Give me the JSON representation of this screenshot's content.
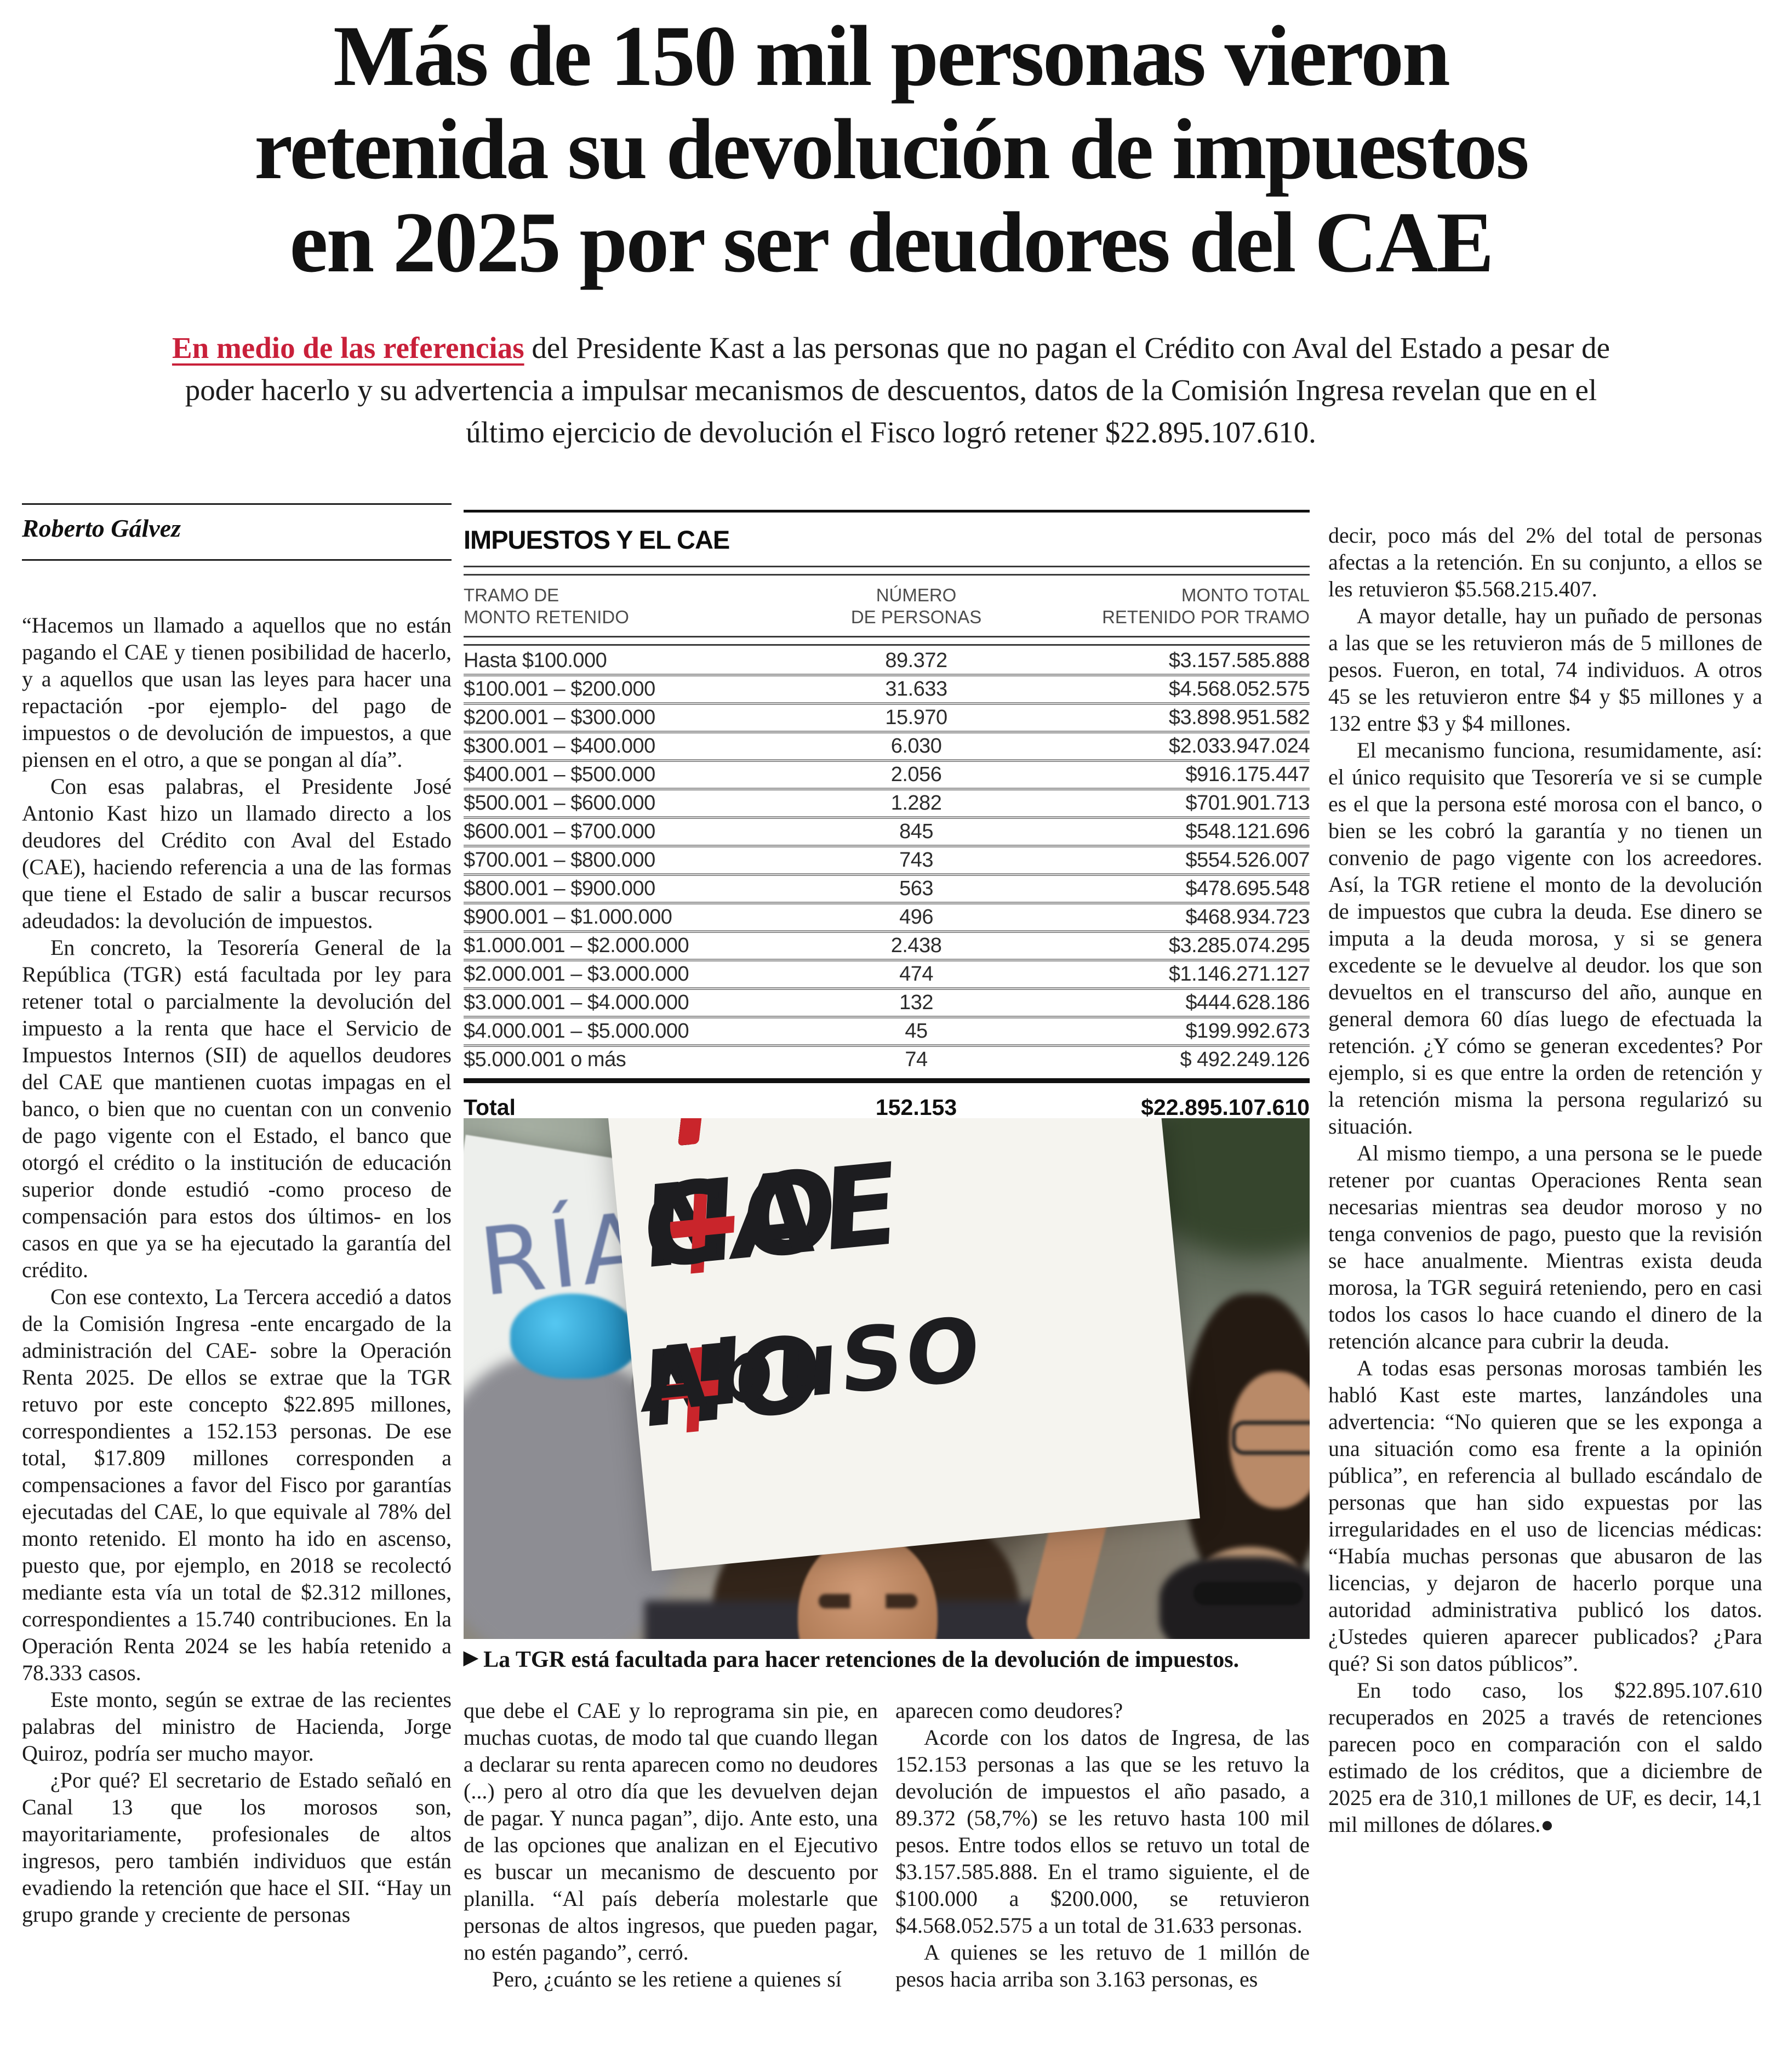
{
  "colors": {
    "accent_red": "#c9203a",
    "sign_plus_red": "#c9252b",
    "cap_blue": "#2aa9dc",
    "side_sign_ink": "#6f7fa8"
  },
  "headline": {
    "lines": [
      "Más de 150 mil personas vieron",
      "retenida su devolución de impuestos",
      "en 2025 por ser deudores del CAE"
    ]
  },
  "standfirst": {
    "lead": "En medio de las referencias",
    "rest": " del Presidente Kast a las personas que no pagan el Crédito con Aval del Estado a pesar de poder hacerlo y su advertencia a impulsar mecanismos de descuentos, datos de la Comisión Ingresa revelan que en el último ejercicio de devolución el Fisco logró retener $22.895.107.610."
  },
  "byline": "Roberto Gálvez",
  "infographic": {
    "title": "IMPUESTOS Y EL CAE",
    "headers": [
      "TRAMO DE\nMONTO RETENIDO",
      "NÚMERO\nDE PERSONAS",
      "MONTO TOTAL\nRETENIDO POR TRAMO"
    ],
    "rows": [
      [
        "Hasta $100.000",
        "89.372",
        "$3.157.585.888"
      ],
      [
        "$100.001 – $200.000",
        "31.633",
        "$4.568.052.575"
      ],
      [
        "$200.001 – $300.000",
        "15.970",
        "$3.898.951.582"
      ],
      [
        "$300.001 – $400.000",
        "6.030",
        "$2.033.947.024"
      ],
      [
        "$400.001 – $500.000",
        "2.056",
        "$916.175.447"
      ],
      [
        "$500.001 – $600.000",
        "1.282",
        "$701.901.713"
      ],
      [
        "$600.001 – $700.000",
        "845",
        "$548.121.696"
      ],
      [
        "$700.001 – $800.000",
        "743",
        "$554.526.007"
      ],
      [
        "$800.001 – $900.000",
        "563",
        "$478.695.548"
      ],
      [
        "$900.001 – $1.000.000",
        "496",
        "$468.934.723"
      ],
      [
        "$1.000.001 – $2.000.000",
        "2.438",
        "$3.285.074.295"
      ],
      [
        "$2.000.001 – $3.000.000",
        "474",
        "$1.146.271.127"
      ],
      [
        "$3.000.001 – $4.000.000",
        "132",
        "$444.628.186"
      ],
      [
        "$4.000.001 – $5.000.000",
        "45",
        "$199.992.673"
      ],
      [
        "$5.000.001 o más",
        "74",
        "$ 492.249.126"
      ]
    ],
    "total": {
      "label": "Total",
      "personas": "152.153",
      "monto": "$22.895.107.610"
    }
  },
  "photo": {
    "side_sign_text": "RÍA",
    "sign_line1": [
      "NO",
      "+",
      "CAE"
    ],
    "sign_line2": [
      "NO",
      "+",
      "AbuSO"
    ],
    "caption_marker": "▶",
    "caption": "La TGR está facultada para hacer retenciones de la devolución de impuestos."
  },
  "columns": {
    "left": [
      "“Hacemos un llamado a aquellos que no están pagando el CAE y tienen posibilidad de hacerlo, y a aquellos que usan las leyes para hacer una repactación -por ejemplo- del pago de impuestos o de devolución de impuestos, a que piensen en el otro, a que se pongan al día”.",
      "Con esas palabras, el Presidente José Antonio Kast hizo un llamado directo a los deudores del Crédito con Aval del Estado (CAE), haciendo referencia a una de las formas que tiene el Estado de salir a buscar recursos adeudados: la devolución de impuestos.",
      "En concreto, la Tesorería General de la República (TGR) está facultada por ley para retener total o parcialmente la devolución del impuesto a la renta que hace el Servicio de Impuestos Internos (SII) de aquellos deudores del CAE que mantienen cuotas impagas en el banco, o bien que no cuentan con un convenio de pago vigente con el Estado, el banco que otorgó el crédito o la institución de educación superior donde estudió -como proceso de compensación para estos dos últimos- en los casos en que ya se ha ejecutado la garantía del crédito.",
      "Con ese contexto, La Tercera accedió a datos de la Comisión Ingresa -ente encargado de la administración del CAE- sobre la Operación Renta 2025. De ellos se extrae que la TGR retuvo por este concepto $22.895 millones, correspondientes a 152.153 personas. De ese total, $17.809 millones corresponden a compensaciones a favor del Fisco por garantías ejecutadas del CAE, lo que equivale al 78% del monto retenido. El monto ha ido en ascenso, puesto que, por ejemplo, en 2018 se recolectó mediante esta vía un total de $2.312 millones, correspondientes a 15.740 contribuciones. En la Operación Renta 2024 se les había retenido a 78.333 casos.",
      "Este monto, según se extrae de las recientes palabras del ministro de Hacienda, Jorge Quiroz, podría ser mucho mayor.",
      "¿Por qué? El secretario de Estado señaló en Canal 13 que los morosos son, mayoritariamente, profesionales de altos ingresos, pero también individuos que están evadiendo la retención que hace el SII. “Hay un grupo grande y creciente de personas"
    ],
    "mid_a": [
      "que debe el CAE y lo reprograma sin pie, en muchas cuotas, de modo tal que cuando llegan a declarar su renta aparecen como no deudores (...) pero al otro día que les devuelven dejan de pagar. Y nunca pagan”, dijo. Ante esto, una de las opciones que analizan en el Ejecutivo es buscar un mecanismo de descuento por planilla. “Al país debería molestarle que personas de altos ingresos, que pueden pagar, no estén pagando”, cerró.",
      "Pero, ¿cuánto se les retiene a quienes sí"
    ],
    "mid_b": [
      "aparecen como deudores?",
      "Acorde con los datos de Ingresa, de las 152.153 personas a las que se les retuvo la devolución de impuestos el año pasado, a 89.372 (58,7%) se les retuvo hasta 100 mil pesos. Entre todos ellos se retuvo un total de $3.157.585.888. En el tramo siguiente, el de $100.000 a $200.000, se retuvieron $4.568.052.575 a un total de 31.633 personas.",
      "A quienes se les retuvo de 1 millón de pesos hacia arriba son 3.163 personas, es"
    ],
    "right": [
      "decir, poco más del 2% del total de personas afectas a la retención. En su conjunto, a ellos se les retuvieron $5.568.215.407.",
      "A mayor detalle, hay un puñado de personas a las que se les retuvieron más de 5 millones de pesos. Fueron, en total, 74 individuos. A otros 45 se les retuvieron entre $4 y $5 millones y a 132 entre $3 y $4 millones.",
      "El mecanismo funciona, resumidamente, así: el único requisito que Tesorería ve si se cumple es el que la persona esté morosa con el banco, o bien se les cobró la garantía y no tienen un convenio de pago vigente con los acreedores. Así, la TGR retiene el monto de la devolución de impuestos que cubra la deuda. Ese dinero se imputa a la deuda morosa, y si se genera excedente se le devuelve al deudor. los que son devueltos en el transcurso del año, aunque en general demora 60 días luego de efectuada la retención. ¿Y cómo se generan excedentes? Por ejemplo, si es que entre la orden de retención y la retención misma la persona regularizó su situación.",
      "Al mismo tiempo, a una persona se le puede retener por cuantas Operaciones Renta sean necesarias mientras sea deudor moroso y no tenga convenios de pago, puesto que la revisión se hace anualmente. Mientras exista deuda morosa, la TGR seguirá reteniendo, pero en casi todos los casos lo hace cuando el dinero de la retención alcance para cubrir la deuda.",
      "A todas esas personas morosas también les habló Kast este martes, lanzándoles una advertencia: “No quieren que se les exponga a una situación como esa frente a la opinión pública”, en referencia al bullado escándalo de personas que han sido expuestas por las irregularidades en el uso de licencias médicas: “Había muchas personas que abusaron de las licencias, y dejaron de hacerlo porque una autoridad administrativa publicó los datos. ¿Ustedes quieren aparecer publicados? ¿Para qué? Si son datos públicos”.",
      "En todo caso, los $22.895.107.610 recuperados en 2025 a través de retenciones parecen poco en comparación con el saldo estimado de los créditos, que a diciembre de 2025 era de 310,1 millones de UF, es decir, 14,1 mil millones de dólares.●"
    ]
  }
}
